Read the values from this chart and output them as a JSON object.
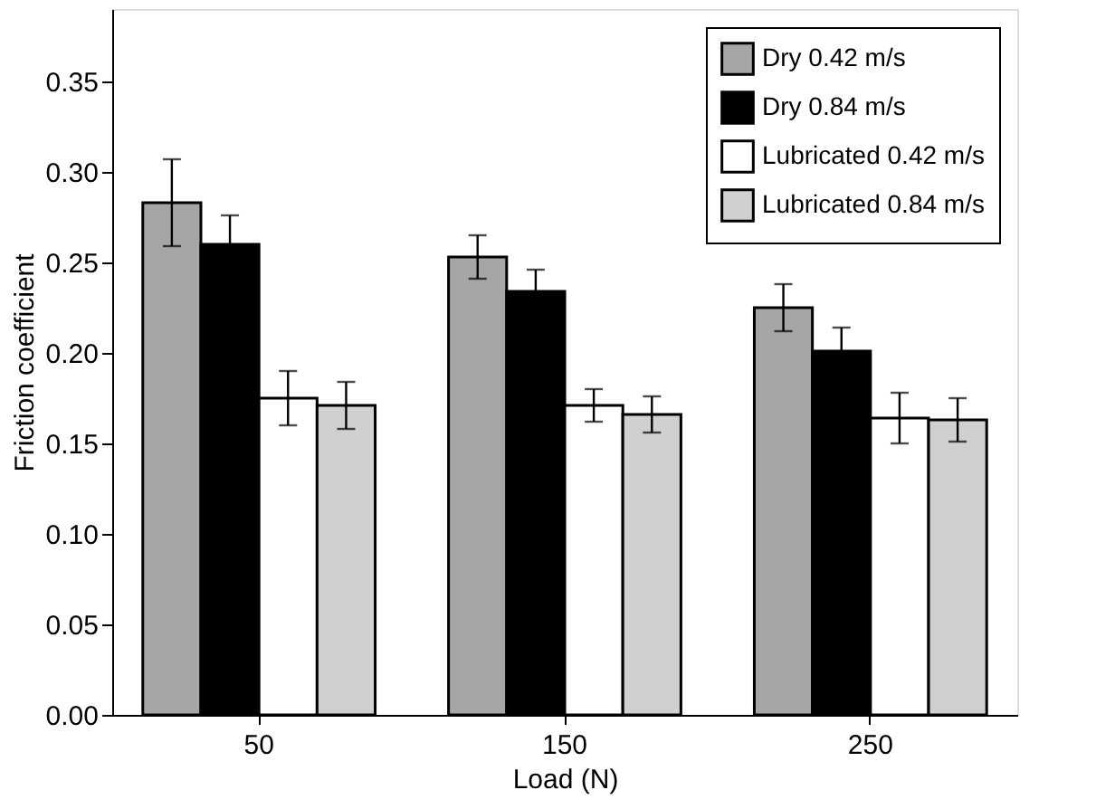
{
  "chart_data": {
    "type": "bar",
    "xlabel": "Load (N)",
    "ylabel": "Friction coefficient",
    "categories": [
      "50",
      "150",
      "250"
    ],
    "series": [
      {
        "name": "Dry 0.42 m/s",
        "color": "#a6a6a6",
        "values": [
          0.283,
          0.253,
          0.225
        ],
        "errors": [
          0.024,
          0.012,
          0.013
        ]
      },
      {
        "name": "Dry 0.84 m/s",
        "color": "#000000",
        "values": [
          0.26,
          0.234,
          0.201
        ],
        "errors": [
          0.016,
          0.012,
          0.013
        ]
      },
      {
        "name": "Lubricated 0.42 m/s",
        "color": "#ffffff",
        "values": [
          0.175,
          0.171,
          0.164
        ],
        "errors": [
          0.015,
          0.009,
          0.014
        ]
      },
      {
        "name": "Lubricated 0.84 m/s",
        "color": "#d0d0d0",
        "values": [
          0.171,
          0.166,
          0.163
        ],
        "errors": [
          0.013,
          0.01,
          0.012
        ]
      }
    ],
    "ylim": [
      0,
      0.39
    ],
    "yticks": [
      {
        "value": 0,
        "label": "0.00"
      },
      0.05,
      {
        "value": 0.1,
        "label": "0.10"
      },
      0.15,
      {
        "value": 0.2,
        "label": "0.20"
      },
      0.25,
      {
        "value": 0.3,
        "label": "0.30"
      },
      0.35
    ],
    "legend": "top right",
    "grid": false
  }
}
